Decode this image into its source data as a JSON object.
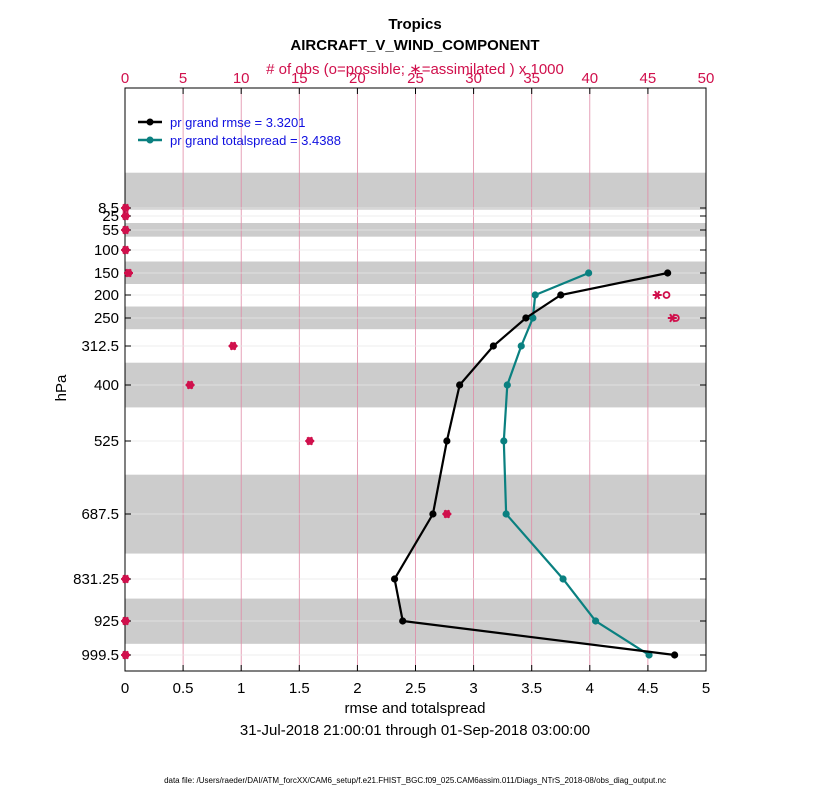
{
  "chart_data": {
    "type": "line",
    "title": "Tropics",
    "subtitle": "AIRCRAFT_V_WIND_COMPONENT",
    "top_axis_label": "# of obs (o=possible; ∗=assimilated ) x 1000",
    "top_axis_range": [
      0,
      50
    ],
    "top_axis_ticks": [
      "0",
      "5",
      "10",
      "15",
      "20",
      "25",
      "30",
      "35",
      "40",
      "45",
      "50"
    ],
    "xlabel": "rmse and totalspread",
    "xlim": [
      0,
      5
    ],
    "x_ticks": [
      "0",
      "0.5",
      "1",
      "1.5",
      "2",
      "2.5",
      "3",
      "3.5",
      "4",
      "4.5",
      "5"
    ],
    "ylabel": "hPa",
    "levels": [
      8.5,
      25,
      55,
      100,
      150,
      200,
      250,
      312.5,
      400,
      525,
      687.5,
      831.25,
      925,
      999.5
    ],
    "level_labels": [
      "8.5",
      "25",
      "55",
      "100",
      "150",
      "200",
      "250",
      "312.5",
      "400",
      "525",
      "687.5",
      "831.25",
      "925",
      "999.5"
    ],
    "date_range": "31-Jul-2018 21:00:01 through 01-Sep-2018 03:00:00",
    "footnote": "data file: /Users/raeder/DAI/ATM_forcXX/CAM6_setup/f.e21.FHIST_BGC.f09_025.CAM6assim.011/Diags_NTrS_2018-08/obs_diag_output.nc",
    "series": [
      {
        "name": "rmse",
        "legend": "pr grand rmse = 3.3201",
        "color": "#000000",
        "levels": [
          150,
          200,
          250,
          312.5,
          400,
          525,
          687.5,
          831.25,
          925,
          999.5
        ],
        "values": [
          4.67,
          3.75,
          3.45,
          3.17,
          2.88,
          2.77,
          2.65,
          2.32,
          2.39,
          4.73
        ]
      },
      {
        "name": "totalspread",
        "legend": "pr grand totalspread = 3.4388",
        "color": "#0a8080",
        "levels": [
          150,
          200,
          250,
          312.5,
          400,
          525,
          687.5,
          831.25,
          925,
          999.5
        ],
        "values": [
          3.99,
          3.53,
          3.51,
          3.41,
          3.29,
          3.26,
          3.28,
          3.77,
          4.05,
          4.51
        ]
      }
    ],
    "obs_counts": {
      "color": "#d0104c",
      "levels": [
        8.5,
        25,
        55,
        100,
        150,
        200,
        250,
        312.5,
        400,
        525,
        687.5,
        831.25,
        925,
        999.5
      ],
      "possible": [
        0.05,
        0.05,
        0.05,
        0.05,
        0.3,
        46.6,
        47.4,
        9.3,
        5.6,
        15.9,
        27.7,
        0.05,
        0.05,
        0.05
      ],
      "assimilated": [
        0.05,
        0.05,
        0.05,
        0.05,
        0.3,
        45.8,
        47.1,
        9.3,
        5.6,
        15.9,
        27.7,
        0.05,
        0.05,
        0.05
      ]
    },
    "shaded_bands_hPa": [
      [
        6,
        12
      ],
      [
        40,
        70
      ],
      [
        125,
        175
      ],
      [
        225,
        275
      ],
      [
        350,
        450
      ],
      [
        600,
        775
      ],
      [
        875,
        975
      ]
    ]
  }
}
